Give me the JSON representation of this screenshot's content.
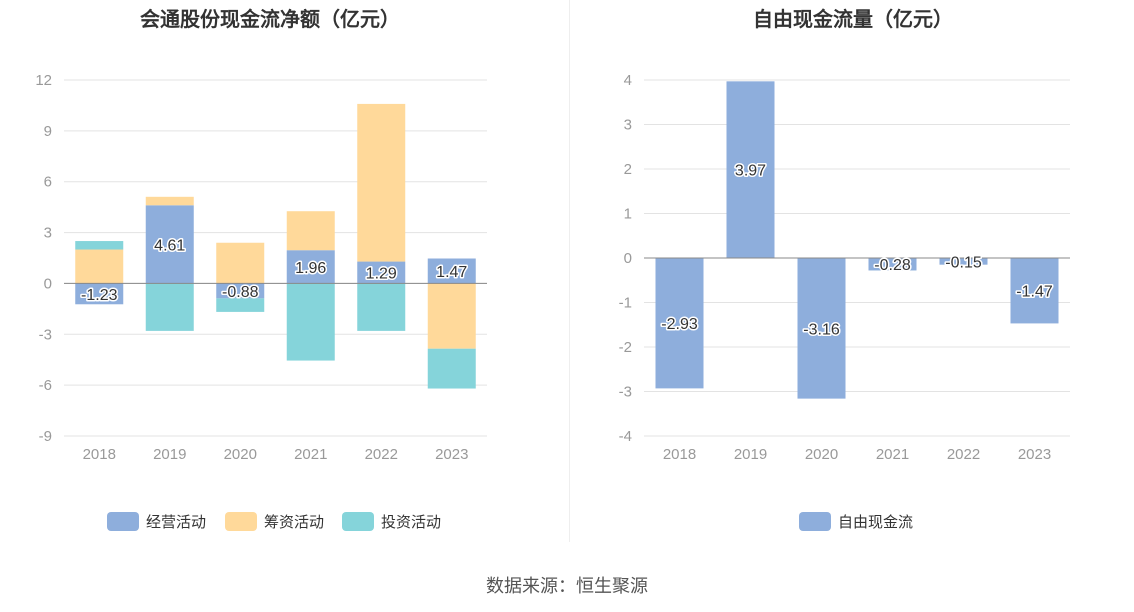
{
  "colors": {
    "operating": "#8eaedc",
    "financing": "#ffd99a",
    "investing": "#85d4da",
    "free": "#8eaedc",
    "label_text": "#333333",
    "axis_text": "#999999",
    "grid": "#e3e3e3",
    "zero_line": "#888888"
  },
  "source_label": "数据来源：恒生聚源",
  "chart_data": [
    {
      "type": "bar",
      "stacked": true,
      "title": "会通股份现金流净额（亿元）",
      "categories": [
        "2018",
        "2019",
        "2020",
        "2021",
        "2022",
        "2023"
      ],
      "yticks": [
        "12",
        "9",
        "6",
        "3",
        "0",
        "-3",
        "-6",
        "-9"
      ],
      "ylim": [
        -9,
        12
      ],
      "grid": true,
      "legend_position": "bottom",
      "series": [
        {
          "name": "经营活动",
          "values": [
            -1.23,
            4.61,
            -0.88,
            1.96,
            1.29,
            1.47
          ],
          "labels": [
            "-1.23",
            "4.61",
            "-0.88",
            "1.96",
            "1.29",
            "1.47"
          ]
        },
        {
          "name": "筹资活动",
          "values": [
            2.0,
            0.5,
            2.4,
            2.3,
            9.3,
            -3.85
          ]
        },
        {
          "name": "投资活动",
          "values": [
            0.5,
            -2.8,
            -0.8,
            -4.55,
            -2.8,
            -2.35
          ]
        }
      ]
    },
    {
      "type": "bar",
      "title": "自由现金流量（亿元）",
      "categories": [
        "2018",
        "2019",
        "2020",
        "2021",
        "2022",
        "2023"
      ],
      "yticks": [
        "4",
        "3",
        "2",
        "1",
        "0",
        "-1",
        "-2",
        "-3",
        "-4"
      ],
      "ylim": [
        -4,
        4
      ],
      "grid": true,
      "legend_position": "bottom",
      "series": [
        {
          "name": "自由现金流",
          "values": [
            -2.93,
            3.97,
            -3.16,
            -0.28,
            -0.15,
            -1.47
          ],
          "labels": [
            "-2.93",
            "3.97",
            "-3.16",
            "-0.28",
            "-0.15",
            "-1.47"
          ]
        }
      ]
    }
  ]
}
